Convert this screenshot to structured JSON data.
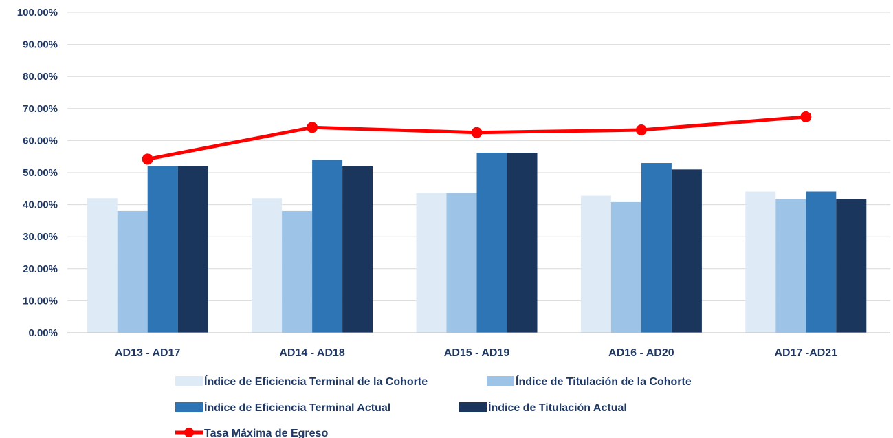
{
  "chart_data": {
    "type": "bar",
    "title": "",
    "xlabel": "",
    "ylabel": "",
    "ylim": [
      0,
      100
    ],
    "y_ticks": [
      "0.00%",
      "10.00%",
      "20.00%",
      "30.00%",
      "40.00%",
      "50.00%",
      "60.00%",
      "70.00%",
      "80.00%",
      "90.00%",
      "100.00%"
    ],
    "grid": true,
    "legend_position": "bottom",
    "categories": [
      "AD13 - AD17",
      "AD14 - AD18",
      "AD15 - AD19",
      "AD16 - AD20",
      "AD17 -AD21"
    ],
    "series": [
      {
        "name": "Índice de Eficiencia Terminal de la Cohorte",
        "type": "bar",
        "color": "#deebf7",
        "values": [
          42.0,
          42.0,
          43.7,
          42.8,
          44.1
        ]
      },
      {
        "name": "Índice de Titulación de la Cohorte",
        "type": "bar",
        "color": "#9dc3e6",
        "values": [
          38.0,
          38.0,
          43.7,
          40.8,
          41.8
        ]
      },
      {
        "name": "Índice de Eficiencia Terminal Actual",
        "type": "bar",
        "color": "#2e75b6",
        "values": [
          52.0,
          54.0,
          56.2,
          53.0,
          44.1
        ]
      },
      {
        "name": "Índice de Titulación Actual",
        "type": "bar",
        "color": "#1b365d",
        "values": [
          52.0,
          52.0,
          56.2,
          51.0,
          41.8
        ]
      },
      {
        "name": "Tasa Máxima de Egreso",
        "type": "line",
        "color": "#ff0000",
        "values": [
          54.2,
          64.1,
          62.5,
          63.3,
          67.4
        ]
      }
    ]
  }
}
